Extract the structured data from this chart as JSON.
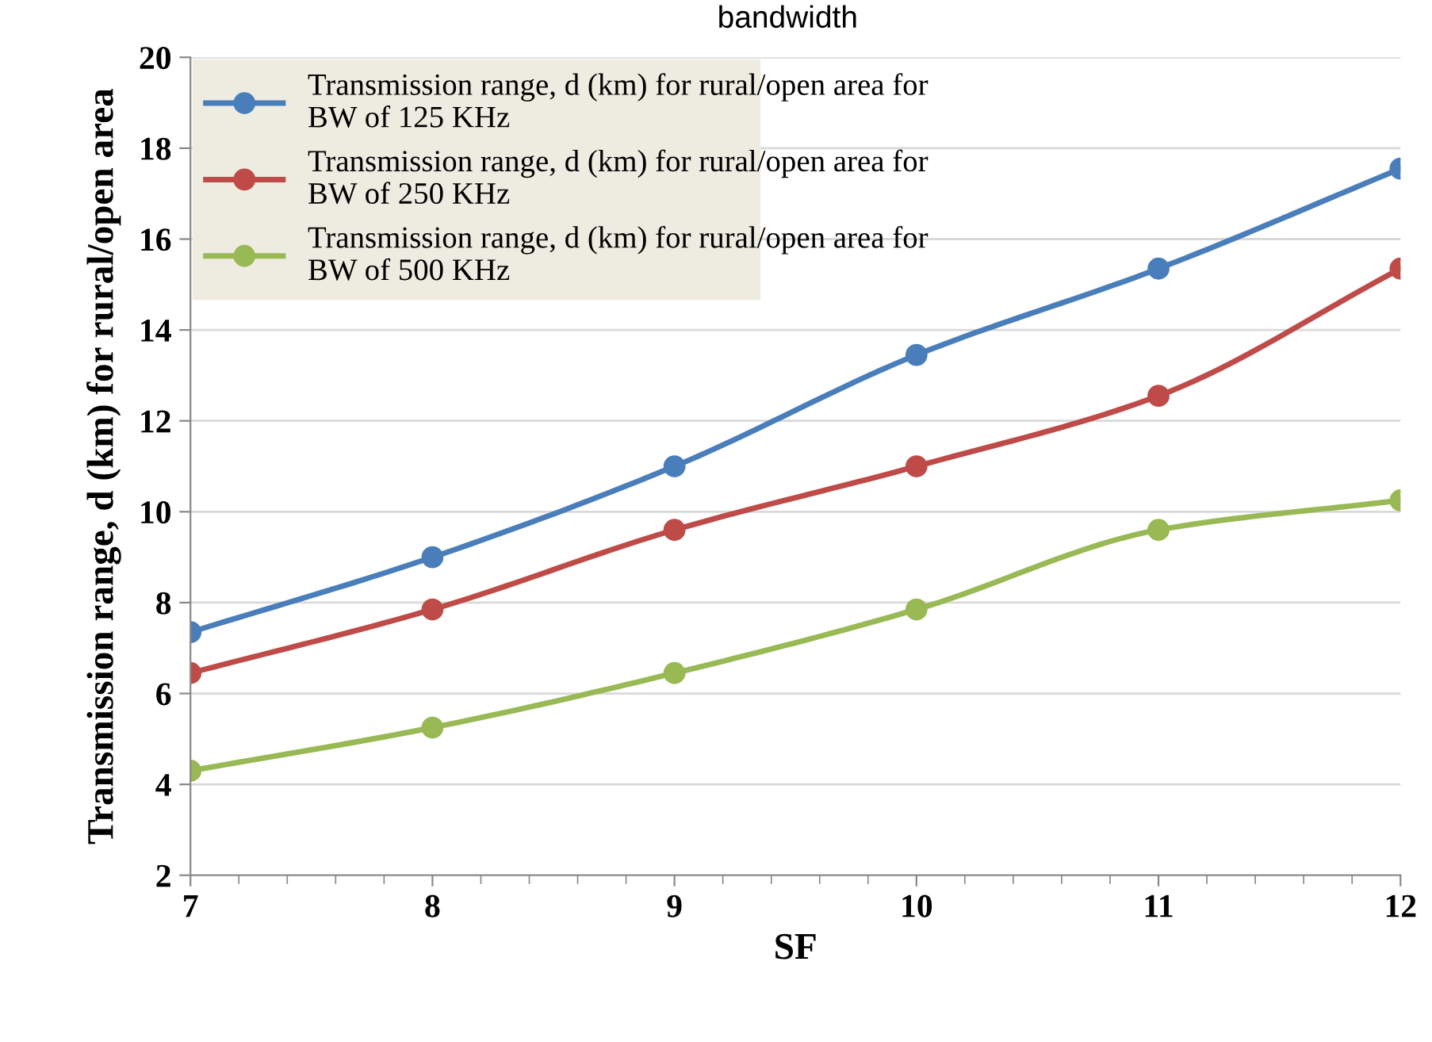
{
  "chart_data": {
    "type": "line",
    "title": "bandwidth",
    "xlabel": "SF",
    "ylabel": "Transmission range, d (km) for rural/open area",
    "x": [
      7,
      8,
      9,
      10,
      11,
      12
    ],
    "series": [
      {
        "name": "Transmission range, d (km) for rural/open area for BW of 125 KHz",
        "color": "#4a7ebb",
        "values": [
          7.35,
          9.0,
          11.0,
          13.45,
          15.35,
          17.55
        ]
      },
      {
        "name": "Transmission range, d (km) for rural/open area for BW of 250 KHz",
        "color": "#be4b48",
        "values": [
          6.45,
          7.85,
          9.6,
          11.0,
          12.55,
          15.35
        ]
      },
      {
        "name": "Transmission range, d (km) for rural/open area for BW of 500 KHz",
        "color": "#98b954",
        "values": [
          4.3,
          5.25,
          6.45,
          7.85,
          9.6,
          10.25
        ]
      }
    ],
    "xlim": [
      7,
      12
    ],
    "xticks": [
      7,
      8,
      9,
      10,
      11,
      12
    ],
    "ylim": [
      2,
      20
    ],
    "yticks": [
      2,
      4,
      6,
      8,
      10,
      12,
      14,
      16,
      18,
      20
    ],
    "grid": "y",
    "legend": "top left",
    "marker": "circle",
    "line_style": "solid"
  }
}
